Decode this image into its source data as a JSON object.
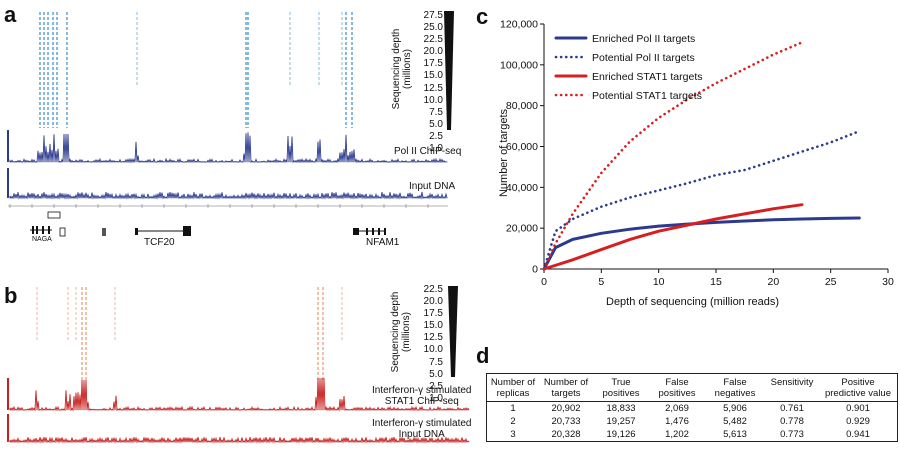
{
  "panel_a": {
    "letter": "a",
    "depth_label_1": "Sequencing depth",
    "depth_label_2": "(millions)",
    "depth_ticks": [
      "27.5",
      "25.0",
      "22.5",
      "20.0",
      "17.5",
      "15.0",
      "12.5",
      "10.0",
      "7.5",
      "5.0",
      "2.5",
      "1.0"
    ],
    "track1_label": "Pol II ChIP-seq",
    "track2_label": "Input DNA",
    "genes": [
      "NAGA",
      "TCF20",
      "NFAM1"
    ],
    "accent": "#2b3a8f",
    "light": "#6aa9d6"
  },
  "panel_b": {
    "letter": "b",
    "depth_label_1": "Sequencing depth",
    "depth_label_2": "(millions)",
    "depth_ticks": [
      "22.5",
      "20.0",
      "17.5",
      "15.0",
      "12.5",
      "10.0",
      "7.5",
      "5.0",
      "2.5",
      "1.0"
    ],
    "track1_label_1": "Interferon-γ stimulated",
    "track1_label_2": "STAT1 ChIP-seq",
    "track2_label_1": "Interferon-γ stimulated",
    "track2_label_2": "Input DNA",
    "accent": "#c81e1e",
    "light": "#f0a585"
  },
  "panel_c": {
    "letter": "c",
    "chart_data": {
      "type": "line",
      "xlabel": "Depth of sequencing (million reads)",
      "ylabel": "Number of  targets",
      "xlim": [
        0,
        30
      ],
      "ylim": [
        0,
        120000
      ],
      "xticks": [
        0,
        5,
        10,
        15,
        20,
        25,
        30
      ],
      "yticks": [
        0,
        20000,
        40000,
        60000,
        80000,
        100000,
        120000
      ],
      "ytick_labels": [
        "0",
        "20,000",
        "40,000",
        "60,000",
        "80,000",
        "100,000",
        "120,000"
      ],
      "legend_position": "top-left",
      "grid": false,
      "series": [
        {
          "name": "Enriched Pol II targets",
          "color": "#2b3a8f",
          "style": "solid",
          "x": [
            0,
            1,
            2.5,
            5,
            7.5,
            10,
            12.5,
            15,
            17.5,
            20,
            22.5,
            25,
            27.5
          ],
          "y": [
            0,
            10500,
            14500,
            17500,
            19500,
            21000,
            22000,
            22800,
            23500,
            24100,
            24500,
            24800,
            25000
          ]
        },
        {
          "name": "Potential Pol II targets",
          "color": "#2b3a8f",
          "style": "dotted",
          "x": [
            0,
            1,
            2.5,
            5,
            7.5,
            10,
            12.5,
            15,
            17.5,
            20,
            22.5,
            25,
            27.5
          ],
          "y": [
            0,
            18500,
            24500,
            30500,
            35000,
            38500,
            42000,
            46000,
            48500,
            53000,
            57500,
            62000,
            67500
          ]
        },
        {
          "name": "Enriched STAT1 targets",
          "color": "#d62020",
          "style": "solid",
          "x": [
            0,
            2.5,
            5,
            7.5,
            10,
            12.5,
            15,
            17.5,
            20,
            22.5
          ],
          "y": [
            0,
            4500,
            9500,
            14500,
            18500,
            21500,
            24500,
            27000,
            29500,
            31500
          ]
        },
        {
          "name": "Potential STAT1 targets",
          "color": "#d62020",
          "style": "dotted",
          "x": [
            0,
            1,
            2.5,
            5,
            7.5,
            10,
            12.5,
            15,
            17.5,
            20,
            22.5
          ],
          "y": [
            0,
            12500,
            27000,
            47000,
            62500,
            74000,
            83000,
            91000,
            98000,
            105000,
            111000
          ]
        }
      ]
    }
  },
  "panel_d": {
    "letter": "d",
    "headers": [
      "Number of replicas",
      "Number of targets",
      "True positives",
      "False positives",
      "False negatives",
      "Sensitivity",
      "Positive predictive value"
    ],
    "rows": [
      [
        "1",
        "20,902",
        "18,833",
        "2,069",
        "5,906",
        "0.761",
        "0.901"
      ],
      [
        "2",
        "20,733",
        "19,257",
        "1,476",
        "5,482",
        "0.778",
        "0.929"
      ],
      [
        "3",
        "20,328",
        "19,126",
        "1,202",
        "5,613",
        "0.773",
        "0.941"
      ]
    ]
  }
}
